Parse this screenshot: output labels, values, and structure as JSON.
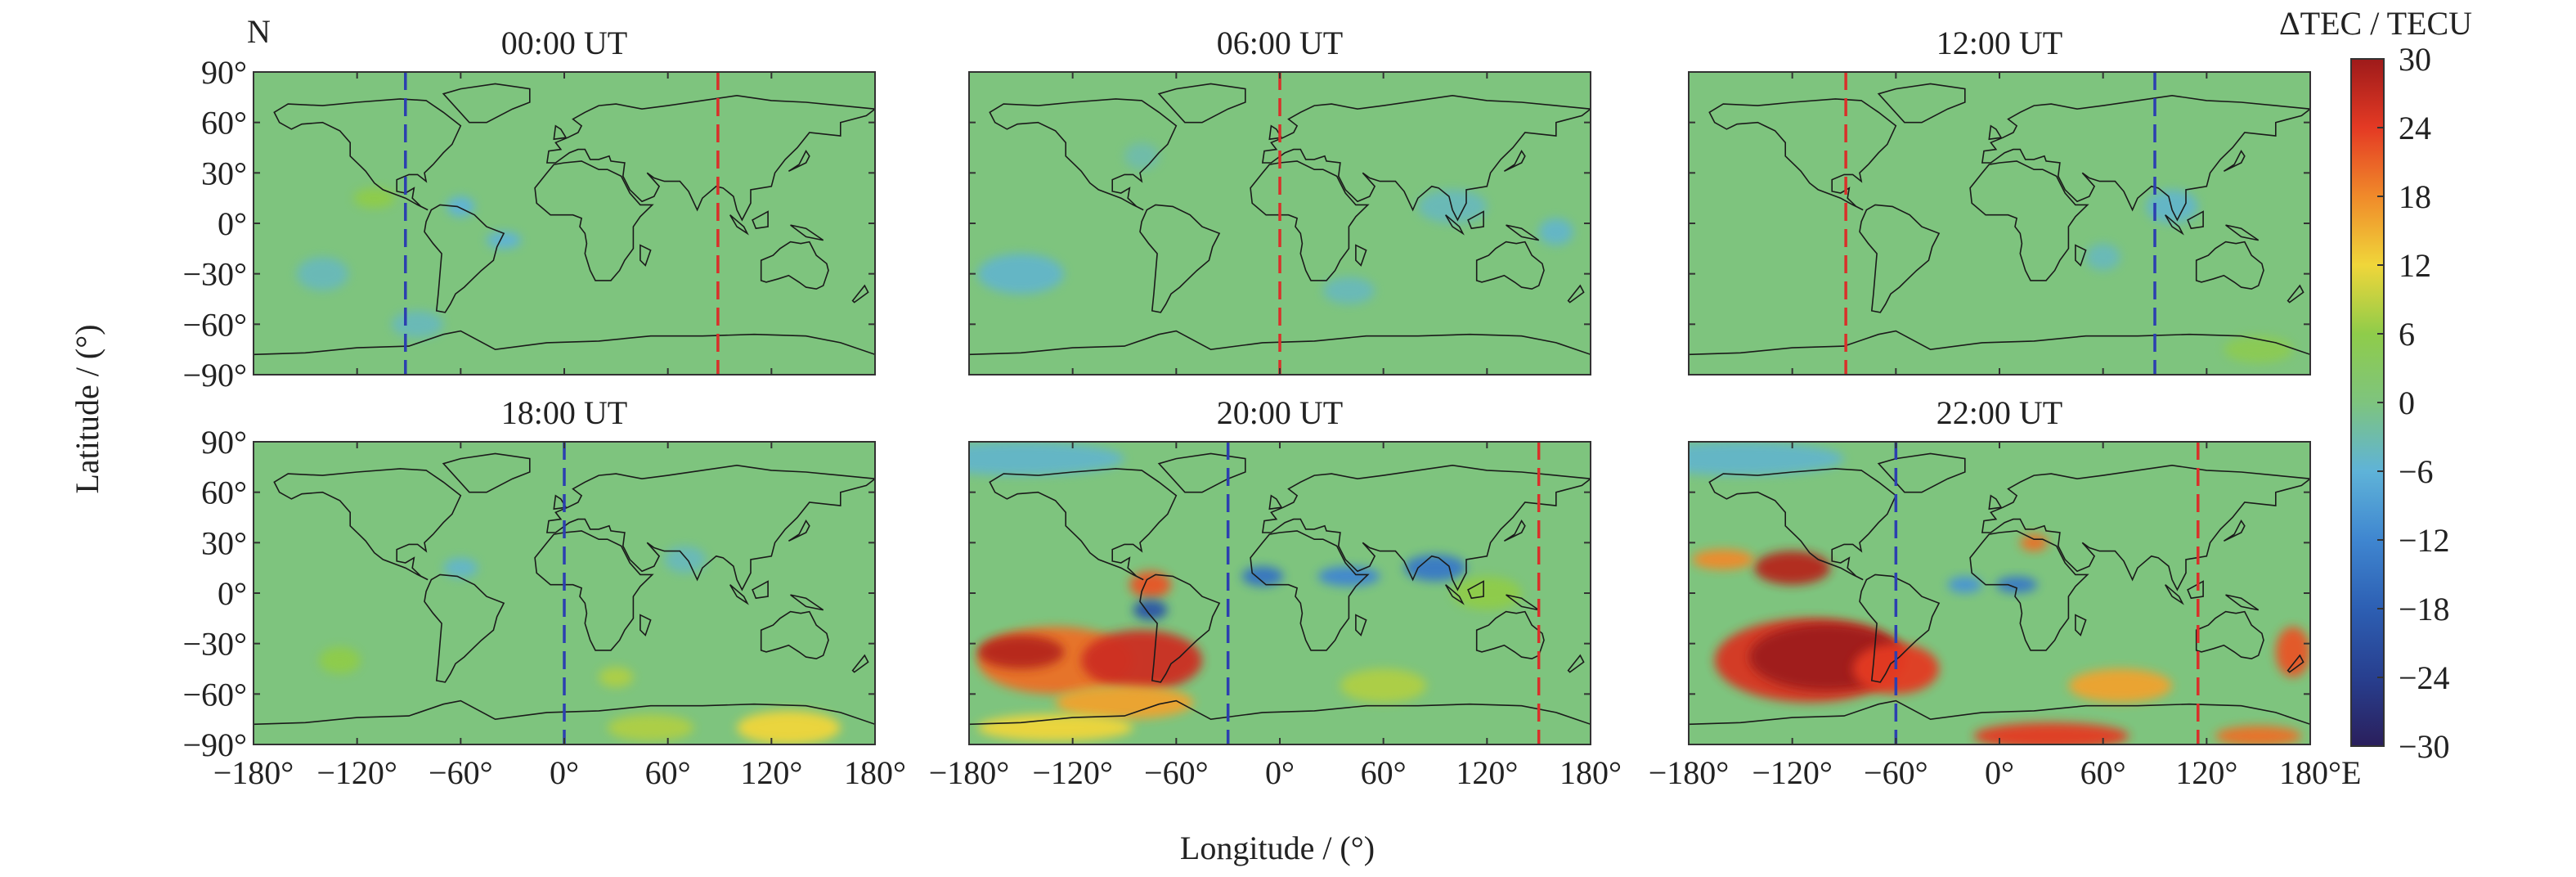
{
  "figure": {
    "corner_label": "N",
    "colorbar_title": "ΔTEC / TECU",
    "xlabel": "Longitude / (°)",
    "ylabel": "Latitude / (°)"
  },
  "chart_data": {
    "type": "heatmap",
    "colorbar": {
      "range": [
        -30,
        30
      ],
      "ticks": [
        30,
        24,
        18,
        12,
        6,
        0,
        -6,
        -12,
        -18,
        -24,
        -30
      ],
      "tick_labels": [
        "30",
        "24",
        "18",
        "12",
        "6",
        "0",
        "−6",
        "−12",
        "−18",
        "−24",
        "−30"
      ],
      "stops": [
        {
          "v": -30,
          "color": "#2a1f5c"
        },
        {
          "v": -24,
          "color": "#283f8f"
        },
        {
          "v": -18,
          "color": "#2d5fb3"
        },
        {
          "v": -12,
          "color": "#3f86d0"
        },
        {
          "v": -6,
          "color": "#5fb3d8"
        },
        {
          "v": 0,
          "color": "#7ec47e"
        },
        {
          "v": 6,
          "color": "#8fcc4a"
        },
        {
          "v": 12,
          "color": "#f0d63a"
        },
        {
          "v": 18,
          "color": "#f08a2a"
        },
        {
          "v": 24,
          "color": "#e43a24"
        },
        {
          "v": 30,
          "color": "#9e1a1a"
        }
      ]
    },
    "xlim": [
      -180,
      180
    ],
    "ylim": [
      -90,
      90
    ],
    "x_ticks": [
      -180,
      -120,
      -60,
      0,
      60,
      120,
      180
    ],
    "x_tick_labels": [
      "−180°",
      "−120°",
      "−60°",
      "0°",
      "60°",
      "120°",
      "180°"
    ],
    "x_tick_labels_last": [
      "−180°",
      "−120°",
      "−60°",
      "0°",
      "60°",
      "120°",
      "180°E"
    ],
    "y_ticks": [
      90,
      60,
      30,
      0,
      -30,
      -60,
      -90
    ],
    "y_tick_labels": [
      "90°",
      "60°",
      "30°",
      "0°",
      "−30°",
      "−60°",
      "−90°"
    ],
    "background_value": 0,
    "panels": [
      {
        "title": "00:00 UT",
        "blue_line_lon": -92,
        "red_line_lon": 89,
        "anomalies": [
          {
            "lon": -110,
            "lat": 15,
            "rx": 12,
            "ry": 6,
            "v": 6
          },
          {
            "lon": -60,
            "lat": 10,
            "rx": 8,
            "ry": 6,
            "v": -6
          },
          {
            "lon": -35,
            "lat": -10,
            "rx": 10,
            "ry": 5,
            "v": -6
          },
          {
            "lon": -140,
            "lat": -30,
            "rx": 15,
            "ry": 10,
            "v": -4
          },
          {
            "lon": -85,
            "lat": -60,
            "rx": 15,
            "ry": 8,
            "v": -4
          }
        ]
      },
      {
        "title": "06:00 UT",
        "blue_line_lon": null,
        "red_line_lon": 0,
        "anomalies": [
          {
            "lon": -150,
            "lat": -30,
            "rx": 25,
            "ry": 12,
            "v": -5
          },
          {
            "lon": 100,
            "lat": 10,
            "rx": 20,
            "ry": 10,
            "v": -4
          },
          {
            "lon": 160,
            "lat": -5,
            "rx": 10,
            "ry": 8,
            "v": -5
          },
          {
            "lon": 40,
            "lat": -40,
            "rx": 15,
            "ry": 8,
            "v": -4
          },
          {
            "lon": -80,
            "lat": 40,
            "rx": 10,
            "ry": 8,
            "v": -3
          }
        ]
      },
      {
        "title": "12:00 UT",
        "blue_line_lon": 90,
        "red_line_lon": -89,
        "anomalies": [
          {
            "lon": 100,
            "lat": 10,
            "rx": 15,
            "ry": 10,
            "v": -5
          },
          {
            "lon": 150,
            "lat": -75,
            "rx": 20,
            "ry": 8,
            "v": 5
          },
          {
            "lon": 60,
            "lat": -20,
            "rx": 10,
            "ry": 8,
            "v": -4
          }
        ]
      },
      {
        "title": "18:00 UT",
        "blue_line_lon": 0,
        "red_line_lon": null,
        "anomalies": [
          {
            "lon": 130,
            "lat": -80,
            "rx": 30,
            "ry": 10,
            "v": 12
          },
          {
            "lon": 50,
            "lat": -80,
            "rx": 25,
            "ry": 8,
            "v": 8
          },
          {
            "lon": -60,
            "lat": 15,
            "rx": 10,
            "ry": 6,
            "v": -5
          },
          {
            "lon": 70,
            "lat": 20,
            "rx": 12,
            "ry": 8,
            "v": -4
          },
          {
            "lon": -130,
            "lat": -40,
            "rx": 12,
            "ry": 8,
            "v": 6
          },
          {
            "lon": 30,
            "lat": -50,
            "rx": 10,
            "ry": 6,
            "v": 8
          }
        ]
      },
      {
        "title": "20:00 UT",
        "blue_line_lon": -30,
        "red_line_lon": 150,
        "anomalies": [
          {
            "lon": -130,
            "lat": -40,
            "rx": 45,
            "ry": 20,
            "v": 20
          },
          {
            "lon": -150,
            "lat": -35,
            "rx": 25,
            "ry": 10,
            "v": 28
          },
          {
            "lon": -80,
            "lat": -40,
            "rx": 35,
            "ry": 18,
            "v": 26
          },
          {
            "lon": -90,
            "lat": -65,
            "rx": 40,
            "ry": 10,
            "v": 16
          },
          {
            "lon": -130,
            "lat": -80,
            "rx": 45,
            "ry": 8,
            "v": 12
          },
          {
            "lon": -75,
            "lat": 5,
            "rx": 12,
            "ry": 8,
            "v": 22
          },
          {
            "lon": -75,
            "lat": -10,
            "rx": 10,
            "ry": 6,
            "v": -20
          },
          {
            "lon": -10,
            "lat": 10,
            "rx": 12,
            "ry": 6,
            "v": -15
          },
          {
            "lon": 40,
            "lat": 10,
            "rx": 18,
            "ry": 6,
            "v": -12
          },
          {
            "lon": 90,
            "lat": 15,
            "rx": 18,
            "ry": 8,
            "v": -14
          },
          {
            "lon": 60,
            "lat": -55,
            "rx": 25,
            "ry": 10,
            "v": 8
          },
          {
            "lon": -150,
            "lat": 80,
            "rx": 60,
            "ry": 10,
            "v": -5
          },
          {
            "lon": 120,
            "lat": 0,
            "rx": 20,
            "ry": 10,
            "v": 6
          }
        ]
      },
      {
        "title": "22:00 UT",
        "blue_line_lon": -60,
        "red_line_lon": 115,
        "anomalies": [
          {
            "lon": -110,
            "lat": -40,
            "rx": 55,
            "ry": 25,
            "v": 25
          },
          {
            "lon": -100,
            "lat": -38,
            "rx": 45,
            "ry": 20,
            "v": 30
          },
          {
            "lon": -60,
            "lat": -45,
            "rx": 25,
            "ry": 15,
            "v": 24
          },
          {
            "lon": -120,
            "lat": 15,
            "rx": 22,
            "ry": 10,
            "v": 28
          },
          {
            "lon": -160,
            "lat": 20,
            "rx": 18,
            "ry": 6,
            "v": 18
          },
          {
            "lon": 20,
            "lat": 30,
            "rx": 8,
            "ry": 5,
            "v": 20
          },
          {
            "lon": 30,
            "lat": -85,
            "rx": 45,
            "ry": 8,
            "v": 24
          },
          {
            "lon": 150,
            "lat": -85,
            "rx": 25,
            "ry": 6,
            "v": 20
          },
          {
            "lon": 70,
            "lat": -55,
            "rx": 30,
            "ry": 10,
            "v": 16
          },
          {
            "lon": 170,
            "lat": -35,
            "rx": 10,
            "ry": 15,
            "v": 22
          },
          {
            "lon": 10,
            "lat": 5,
            "rx": 12,
            "ry": 5,
            "v": -14
          },
          {
            "lon": -20,
            "lat": 5,
            "rx": 10,
            "ry": 5,
            "v": -10
          },
          {
            "lon": -150,
            "lat": 80,
            "rx": 60,
            "ry": 10,
            "v": -5
          }
        ]
      }
    ]
  }
}
